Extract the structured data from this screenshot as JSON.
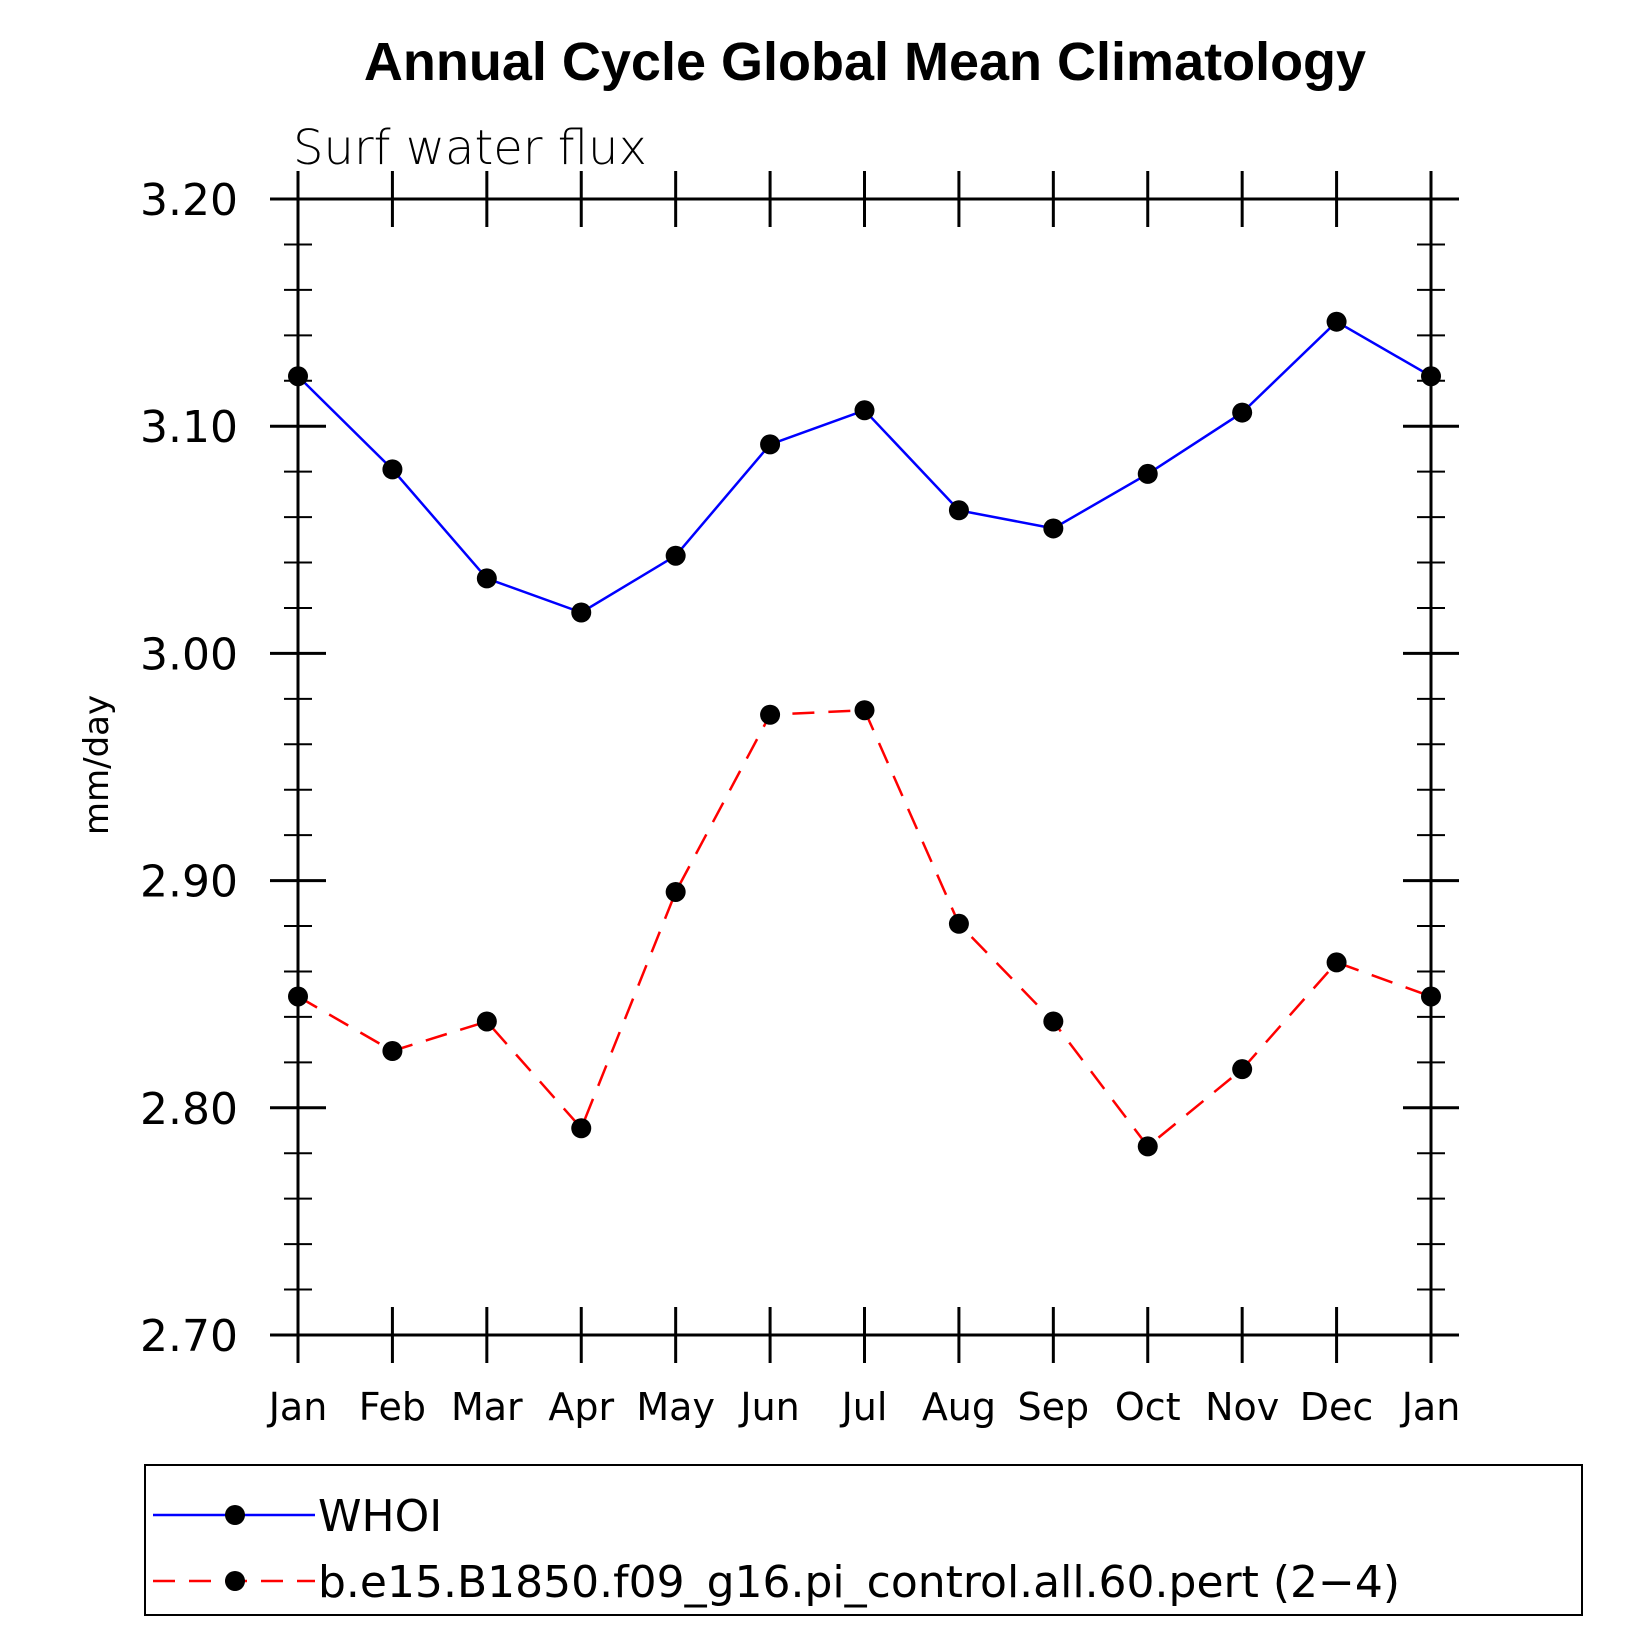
{
  "chart_data": {
    "type": "line",
    "title": "Annual Cycle Global Mean Climatology",
    "subtitle": "Surf water flux",
    "ylabel": "mm/day",
    "xlabel": "",
    "ylim": [
      2.7,
      3.2
    ],
    "yticks": [
      "3.20",
      "3.10",
      "3.00",
      "2.90",
      "2.80",
      "2.70"
    ],
    "ytick_values": [
      3.2,
      3.1,
      3.0,
      2.9,
      2.8,
      2.7
    ],
    "categories": [
      "Jan",
      "Feb",
      "Mar",
      "Apr",
      "May",
      "Jun",
      "Jul",
      "Aug",
      "Sep",
      "Oct",
      "Nov",
      "Dec",
      "Jan"
    ],
    "series": [
      {
        "name": "WHOI",
        "color": "#0000ff",
        "dash": "solid",
        "values": [
          3.122,
          3.081,
          3.033,
          3.018,
          3.043,
          3.092,
          3.107,
          3.063,
          3.055,
          3.079,
          3.106,
          3.146,
          3.122
        ]
      },
      {
        "name": "b.e15.B1850.f09_g16.pi_control.all.60.pert (2−4)",
        "color": "#ff0000",
        "dash": "dashed",
        "values": [
          2.849,
          2.825,
          2.838,
          2.791,
          2.895,
          2.973,
          2.975,
          2.881,
          2.838,
          2.783,
          2.817,
          2.864,
          2.849
        ]
      }
    ],
    "marker_color": "#000000",
    "grid": false,
    "legend_position": "bottom"
  }
}
